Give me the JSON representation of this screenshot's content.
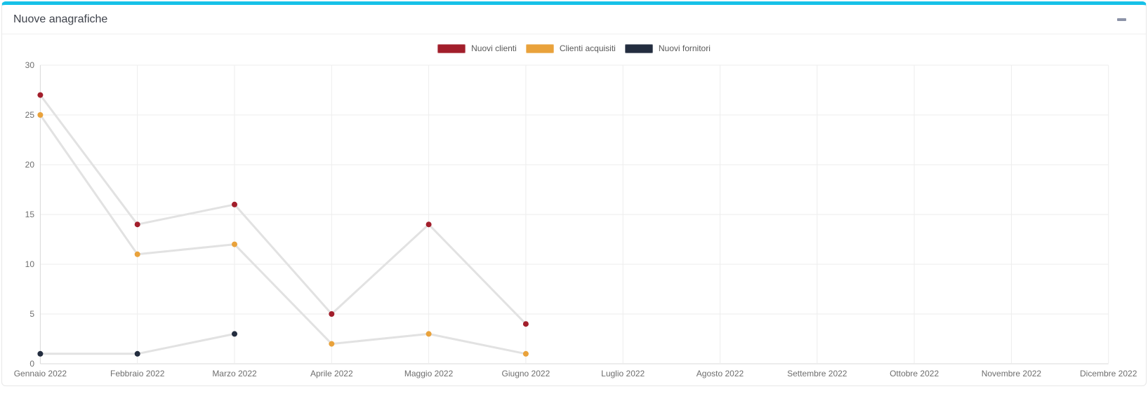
{
  "panel": {
    "title": "Nuove anagrafiche",
    "controls": {
      "minimize_icon": "minus-icon"
    },
    "accent_color": "#17c1e8"
  },
  "chart_data": {
    "type": "line",
    "title": "Nuove anagrafiche",
    "categories": [
      "Gennaio 2022",
      "Febbraio 2022",
      "Marzo 2022",
      "Aprile 2022",
      "Maggio 2022",
      "Giugno 2022",
      "Luglio 2022",
      "Agosto 2022",
      "Settembre 2022",
      "Ottobre 2022",
      "Novembre 2022",
      "Dicembre 2022"
    ],
    "series": [
      {
        "name": "Nuovi clienti",
        "color": "#a21e2b",
        "values": [
          27,
          14,
          16,
          5,
          14,
          4,
          null,
          null,
          null,
          null,
          null,
          null
        ]
      },
      {
        "name": "Clienti acquisiti",
        "color": "#e9a23b",
        "values": [
          25,
          11,
          12,
          2,
          3,
          1,
          null,
          null,
          null,
          null,
          null,
          null
        ]
      },
      {
        "name": "Nuovi fornitori",
        "color": "#232d3f",
        "values": [
          1,
          1,
          3,
          null,
          null,
          null,
          null,
          null,
          null,
          null,
          null,
          null
        ]
      }
    ],
    "ylim": [
      0,
      30
    ],
    "yticks": [
      0,
      5,
      10,
      15,
      20,
      25,
      30
    ],
    "xlabel": "",
    "ylabel": "",
    "grid": true,
    "legend_position": "top",
    "line_color": "#e2e2e2",
    "grid_color": "#ededed",
    "axis_color": "#d9d9d9"
  }
}
